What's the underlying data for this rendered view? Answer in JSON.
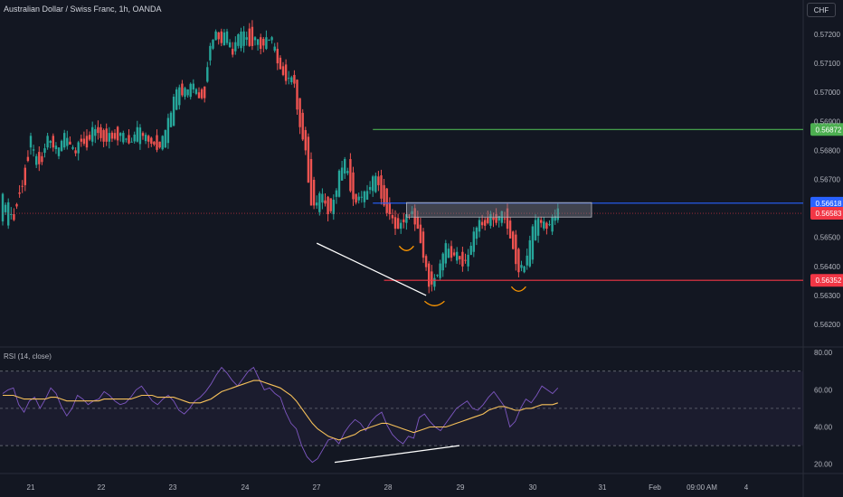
{
  "header": {
    "title": "Australian Dollar / Swiss Franc, 1h, OANDA",
    "currency": "CHF",
    "rsi_title": "RSI (14, close)"
  },
  "colors": {
    "background": "#131722",
    "up": "#26a69a",
    "down": "#ef5350",
    "grid": "#2a2e39",
    "rsi_line": "#7e57c2",
    "rsi_ma": "#f7c15a",
    "target_line": "#4caf50",
    "entry_line": "#2962ff",
    "stop_line": "#f23645",
    "trend_line": "#ffffff",
    "arc": "#ff9800"
  },
  "chart_data": [
    {
      "type": "candlestick",
      "title": "Australian Dollar / Swiss Franc, 1h, OANDA",
      "y_unit": "CHF",
      "x_tick_labels": [
        "21",
        "22",
        "23",
        "24",
        "27",
        "28",
        "29",
        "30",
        "31",
        "Feb",
        "09:00 AM",
        "4"
      ],
      "y_tick_labels": [
        "0.57200",
        "0.57100",
        "0.57000",
        "0.56900",
        "0.56800",
        "0.56700",
        "0.56500",
        "0.56400",
        "0.56300",
        "0.56200"
      ],
      "ylim": [
        0.5614,
        0.5737
      ],
      "grid": false,
      "anchors": [
        [
          0,
          0.56555,
          0.5665
        ],
        [
          4,
          0.5658,
          0.5656
        ],
        [
          6,
          0.56655,
          0.5665
        ],
        [
          8,
          0.5674,
          0.5668
        ],
        [
          10,
          0.5681,
          0.5685
        ],
        [
          12,
          0.5675,
          0.5678
        ],
        [
          14,
          0.5678,
          0.5676
        ],
        [
          16,
          0.5681,
          0.5685
        ],
        [
          18,
          0.5685,
          0.5681
        ],
        [
          20,
          0.5678,
          0.5681
        ],
        [
          22,
          0.5681,
          0.5686
        ],
        [
          24,
          0.5683,
          0.5682
        ],
        [
          26,
          0.568,
          0.5679
        ],
        [
          28,
          0.5684,
          0.5683
        ],
        [
          30,
          0.5685,
          0.5681
        ],
        [
          32,
          0.5683,
          0.5688
        ],
        [
          34,
          0.5688,
          0.5686
        ],
        [
          36,
          0.5687,
          0.5683
        ],
        [
          38,
          0.5683,
          0.5686
        ],
        [
          40,
          0.5686,
          0.5684
        ],
        [
          42,
          0.5685,
          0.5686
        ],
        [
          44,
          0.5684,
          0.5684
        ],
        [
          46,
          0.5683,
          0.5683
        ],
        [
          48,
          0.5683,
          0.5688
        ],
        [
          50,
          0.5686,
          0.5685
        ],
        [
          52,
          0.5685,
          0.5683
        ],
        [
          54,
          0.5683,
          0.5682
        ],
        [
          56,
          0.5683,
          0.5681
        ],
        [
          58,
          0.5681,
          0.5687
        ],
        [
          60,
          0.5688,
          0.5693
        ],
        [
          62,
          0.5694,
          0.5701
        ],
        [
          64,
          0.5703,
          0.5699
        ],
        [
          66,
          0.5699,
          0.5701
        ],
        [
          68,
          0.5701,
          0.5703
        ],
        [
          70,
          0.57,
          0.5698
        ],
        [
          72,
          0.5702,
          0.5698
        ],
        [
          74,
          0.5711,
          0.5716
        ],
        [
          76,
          0.5718,
          0.5721
        ],
        [
          78,
          0.5721,
          0.5717
        ],
        [
          80,
          0.5717,
          0.5721
        ],
        [
          82,
          0.5715,
          0.5713
        ],
        [
          84,
          0.5716,
          0.572
        ],
        [
          86,
          0.5716,
          0.5721
        ],
        [
          88,
          0.5722,
          0.5716
        ],
        [
          90,
          0.5718,
          0.5719
        ],
        [
          92,
          0.5719,
          0.5715
        ],
        [
          94,
          0.5715,
          0.5719
        ],
        [
          96,
          0.5718,
          0.5719
        ],
        [
          98,
          0.5715,
          0.571
        ],
        [
          100,
          0.5709,
          0.5706
        ],
        [
          102,
          0.5705,
          0.5705
        ],
        [
          104,
          0.5706,
          0.5703
        ],
        [
          106,
          0.5698,
          0.5688
        ],
        [
          108,
          0.5687,
          0.568
        ],
        [
          110,
          0.5677,
          0.5661
        ],
        [
          112,
          0.5661,
          0.5662
        ],
        [
          114,
          0.5662,
          0.5665
        ],
        [
          116,
          0.5664,
          0.5658
        ],
        [
          118,
          0.5658,
          0.5663
        ],
        [
          120,
          0.5664,
          0.5673
        ],
        [
          122,
          0.5672,
          0.5677
        ],
        [
          124,
          0.5677,
          0.5666
        ],
        [
          126,
          0.5665,
          0.5662
        ],
        [
          128,
          0.5664,
          0.5664
        ],
        [
          130,
          0.5663,
          0.5666
        ],
        [
          132,
          0.5666,
          0.5671
        ],
        [
          134,
          0.5671,
          0.5668
        ],
        [
          136,
          0.5668,
          0.5661
        ],
        [
          138,
          0.5662,
          0.5658
        ],
        [
          140,
          0.5657,
          0.5653
        ],
        [
          142,
          0.5653,
          0.5655
        ],
        [
          144,
          0.5655,
          0.5658
        ],
        [
          146,
          0.5658,
          0.5659
        ],
        [
          148,
          0.5657,
          0.5653
        ],
        [
          150,
          0.5652,
          0.5643
        ],
        [
          152,
          0.5641,
          0.5633
        ],
        [
          154,
          0.5633,
          0.5636
        ],
        [
          156,
          0.5636,
          0.5641
        ],
        [
          158,
          0.5641,
          0.5648
        ],
        [
          160,
          0.5647,
          0.5643
        ],
        [
          162,
          0.5642,
          0.5645
        ],
        [
          164,
          0.5645,
          0.564
        ],
        [
          166,
          0.564,
          0.5644
        ],
        [
          168,
          0.5645,
          0.5652
        ],
        [
          170,
          0.5652,
          0.5656
        ],
        [
          172,
          0.5656,
          0.5654
        ],
        [
          174,
          0.5654,
          0.5658
        ],
        [
          176,
          0.5658,
          0.5655
        ],
        [
          178,
          0.5655,
          0.5659
        ],
        [
          180,
          0.566,
          0.5653
        ],
        [
          182,
          0.5652,
          0.5646
        ],
        [
          184,
          0.5646,
          0.5638
        ],
        [
          186,
          0.5638,
          0.564
        ],
        [
          188,
          0.564,
          0.5649
        ],
        [
          190,
          0.5649,
          0.5656
        ],
        [
          192,
          0.5656,
          0.5655
        ],
        [
          194,
          0.5655,
          0.5653
        ],
        [
          196,
          0.5652,
          0.5657
        ],
        [
          198,
          0.5656,
          0.566
        ]
      ],
      "horizontal_levels": [
        {
          "price": 0.56872,
          "label": "0.56872",
          "color": "#4caf50",
          "from": 132
        },
        {
          "price": 0.56618,
          "label": "0.56618",
          "color": "#2962ff",
          "from": 132
        },
        {
          "price": 0.56583,
          "label": "0.56583",
          "color": "#f23645",
          "from": 0
        },
        {
          "price": 0.56352,
          "label": "0.56352",
          "color": "#f23645",
          "from": 136
        }
      ]
    },
    {
      "type": "line",
      "title": "RSI (14, close)",
      "y_tick_labels": [
        "80.00",
        "60.00",
        "40.00",
        "20.00"
      ],
      "ylim": [
        15,
        83
      ],
      "bands": [
        30,
        50,
        70
      ],
      "series": [
        {
          "color": "#7e57c2",
          "values": [
            58,
            60,
            61,
            52,
            48,
            54,
            56,
            50,
            55,
            61,
            58,
            51,
            46,
            50,
            57,
            55,
            52,
            54,
            55,
            59,
            57,
            54,
            52,
            53,
            56,
            60,
            62,
            58,
            54,
            52,
            55,
            57,
            54,
            49,
            47,
            50,
            54,
            56,
            59,
            63,
            68,
            72,
            69,
            65,
            62,
            66,
            70,
            72,
            66,
            60,
            61,
            58,
            56,
            48,
            42,
            39,
            30,
            24,
            21,
            23,
            28,
            33,
            34,
            31,
            37,
            41,
            44,
            42,
            38,
            43,
            46,
            48,
            41,
            36,
            33,
            31,
            35,
            34,
            45,
            47,
            43,
            40,
            38,
            42,
            46,
            50,
            52,
            54,
            50,
            49,
            52,
            56,
            59,
            55,
            51,
            40,
            43,
            50,
            55,
            53,
            57,
            62,
            60,
            58,
            61
          ]
        },
        {
          "color": "#f7c15a",
          "values": [
            57,
            57,
            57,
            56,
            55,
            55,
            55,
            55,
            55,
            56,
            56,
            55,
            54,
            54,
            54,
            54,
            54,
            54,
            54,
            55,
            55,
            55,
            55,
            55,
            55,
            56,
            57,
            57,
            57,
            56,
            56,
            56,
            56,
            55,
            54,
            53,
            53,
            53,
            54,
            55,
            57,
            59,
            60,
            61,
            62,
            63,
            64,
            65,
            65,
            64,
            63,
            62,
            61,
            59,
            57,
            54,
            50,
            46,
            42,
            39,
            37,
            35,
            34,
            33,
            34,
            35,
            36,
            38,
            39,
            40,
            41,
            42,
            42,
            41,
            40,
            39,
            38,
            37,
            38,
            39,
            40,
            40,
            40,
            40,
            41,
            42,
            43,
            44,
            45,
            46,
            47,
            49,
            50,
            51,
            51,
            50,
            49,
            49,
            50,
            50,
            51,
            52,
            52,
            52,
            53
          ]
        }
      ]
    }
  ]
}
